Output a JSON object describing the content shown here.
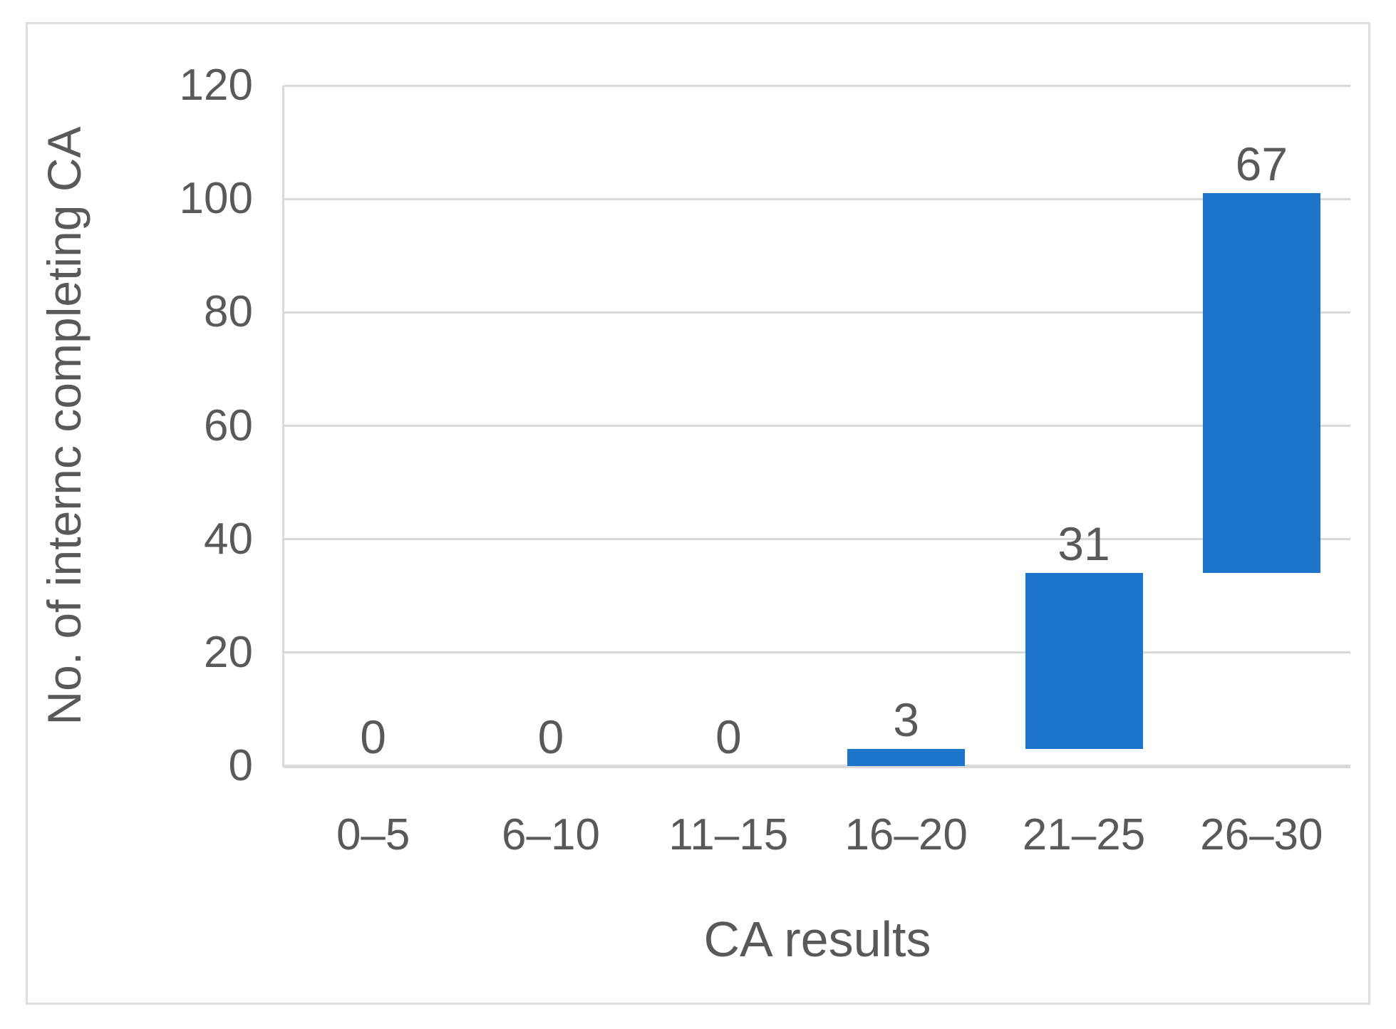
{
  "figure": {
    "background": "#FFFFFF",
    "border_color": "#DEDEDE"
  },
  "chart_data": {
    "type": "bar",
    "subtype": "waterfall-cumulative",
    "title": "",
    "xlabel": "CA results",
    "ylabel": "No. of internc completing CA",
    "categories": [
      "0–5",
      "6–10",
      "11–15",
      "16–20",
      "21–25",
      "26–30"
    ],
    "values": [
      0,
      0,
      0,
      3,
      31,
      67
    ],
    "data_labels": [
      "0",
      "0",
      "0",
      "3",
      "31",
      "67"
    ],
    "segments": [
      [
        0,
        0
      ],
      [
        0,
        0
      ],
      [
        0,
        0
      ],
      [
        0,
        3
      ],
      [
        3,
        34
      ],
      [
        34,
        101
      ]
    ],
    "ylim": [
      0,
      120
    ],
    "yticks": [
      0,
      20,
      40,
      60,
      80,
      100,
      120
    ],
    "grid": "horizontal",
    "legend": "none",
    "bar_color": "#1C75C8",
    "text_color": "#595959",
    "gridline_color": "#D9D9D9"
  }
}
